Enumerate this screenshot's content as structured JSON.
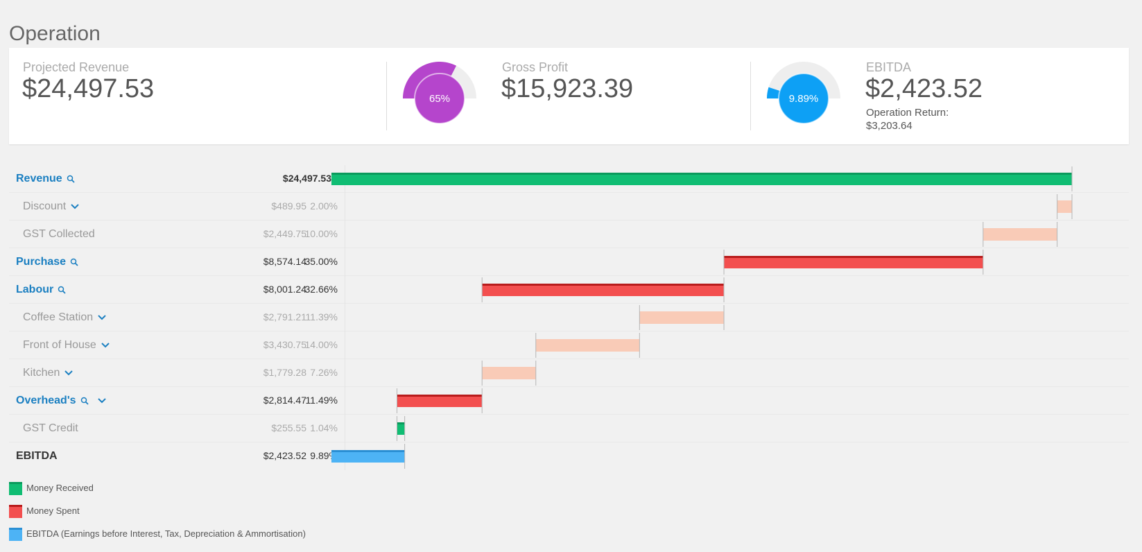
{
  "page": {
    "title": "Operation"
  },
  "summary": {
    "projected_revenue": {
      "label": "Projected Revenue",
      "value": "$24,497.53"
    },
    "gross_profit": {
      "label": "Gross Profit",
      "value": "$15,923.39",
      "gauge_text": "65%",
      "gauge_fraction": 0.65,
      "gauge_color": "#b545cc"
    },
    "ebitda": {
      "label": "EBITDA",
      "value": "$2,423.52",
      "gauge_text": "9.89%",
      "gauge_fraction": 0.0989,
      "gauge_color": "#0da0f5",
      "operation_return_label": "Operation Return:",
      "operation_return_value": "$3,203.64"
    }
  },
  "breakdown": {
    "rows": [
      {
        "label": "Revenue",
        "amount": "$24,497.53",
        "percent": ""
      },
      {
        "label": "Discount",
        "amount": "$489.95",
        "percent": "2.00%"
      },
      {
        "label": "GST Collected",
        "amount": "$2,449.75",
        "percent": "10.00%"
      },
      {
        "label": "Purchase",
        "amount": "$8,574.14",
        "percent": "35.00%"
      },
      {
        "label": "Labour",
        "amount": "$8,001.24",
        "percent": "32.66%"
      },
      {
        "label": "Coffee Station",
        "amount": "$2,791.21",
        "percent": "11.39%"
      },
      {
        "label": "Front of House",
        "amount": "$3,430.75",
        "percent": "14.00%"
      },
      {
        "label": "Kitchen",
        "amount": "$1,779.28",
        "percent": "7.26%"
      },
      {
        "label": "Overhead's",
        "amount": "$2,814.47",
        "percent": "11.49%"
      },
      {
        "label": "GST Credit",
        "amount": "$255.55",
        "percent": "1.04%"
      },
      {
        "label": "EBITDA",
        "amount": "$2,423.52",
        "percent": "9.89%"
      }
    ]
  },
  "chart_data": {
    "type": "bar",
    "categories": [
      "Revenue",
      "Discount",
      "GST Collected",
      "Purchase",
      "Labour",
      "Coffee Station",
      "Front of House",
      "Kitchen",
      "Overhead's",
      "GST Credit",
      "EBITDA"
    ],
    "bars": [
      {
        "start": 0,
        "end": 24497.53,
        "kind": "received"
      },
      {
        "start": 24007.58,
        "end": 24497.53,
        "kind": "sub-spent"
      },
      {
        "start": 21557.83,
        "end": 24007.58,
        "kind": "sub-spent"
      },
      {
        "start": 12983.69,
        "end": 21557.83,
        "kind": "spent"
      },
      {
        "start": 4982.45,
        "end": 12983.69,
        "kind": "spent"
      },
      {
        "start": 10192.48,
        "end": 12983.69,
        "kind": "sub-spent"
      },
      {
        "start": 6761.73,
        "end": 10192.48,
        "kind": "sub-spent"
      },
      {
        "start": 4982.45,
        "end": 6761.73,
        "kind": "sub-spent"
      },
      {
        "start": 2167.98,
        "end": 4982.45,
        "kind": "spent"
      },
      {
        "start": 2167.98,
        "end": 2423.53,
        "kind": "received"
      },
      {
        "start": 0,
        "end": 2423.52,
        "kind": "ebitda"
      }
    ],
    "xlim": [
      0,
      24497.53
    ]
  },
  "legend": {
    "items": [
      {
        "label": "Money Received",
        "color": "#10bd73"
      },
      {
        "label": "Money Spent",
        "color": "#f34f4f"
      },
      {
        "label": "EBITDA (Earnings before Interest, Tax, Depreciation & Ammortisation)",
        "color": "#4db3f5"
      }
    ]
  },
  "colors": {
    "received": "#10bd73",
    "spent": "#f34f4f",
    "sub_spent": "#f9cbb7",
    "ebitda": "#4db3f5",
    "link": "#1a7fc1"
  }
}
